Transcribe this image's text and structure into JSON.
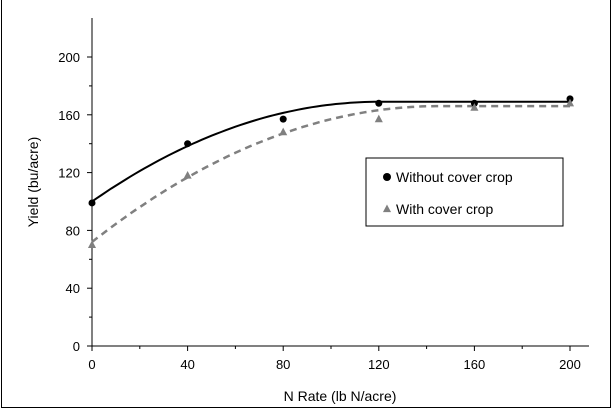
{
  "chart_data": {
    "type": "scatter",
    "title": "",
    "xlabel": "N Rate (lb N/acre)",
    "ylabel": "Yield (bu/acre)",
    "xlim": [
      0,
      210
    ],
    "ylim": [
      0,
      220
    ],
    "x_ticks": [
      0,
      40,
      80,
      120,
      160,
      200
    ],
    "y_ticks": [
      0,
      40,
      80,
      120,
      160,
      200
    ],
    "grid": false,
    "legend_position": "right-middle",
    "series": [
      {
        "name": "Without cover crop",
        "marker": "circle",
        "line_style": "solid",
        "color": "#000000",
        "points": [
          {
            "x": 0,
            "y": 99
          },
          {
            "x": 40,
            "y": 140
          },
          {
            "x": 80,
            "y": 157
          },
          {
            "x": 120,
            "y": 168
          },
          {
            "x": 160,
            "y": 168
          },
          {
            "x": 200,
            "y": 171
          }
        ],
        "fit": {
          "intercept": 100,
          "plateau": 169,
          "plateau_start": 120
        }
      },
      {
        "name": "With cover crop",
        "marker": "triangle",
        "line_style": "dashed",
        "color": "#808080",
        "points": [
          {
            "x": 0,
            "y": 70
          },
          {
            "x": 40,
            "y": 118
          },
          {
            "x": 80,
            "y": 148
          },
          {
            "x": 120,
            "y": 157
          },
          {
            "x": 160,
            "y": 165
          },
          {
            "x": 200,
            "y": 168
          }
        ],
        "fit": {
          "intercept": 72,
          "plateau": 166,
          "plateau_start": 145
        }
      }
    ]
  }
}
